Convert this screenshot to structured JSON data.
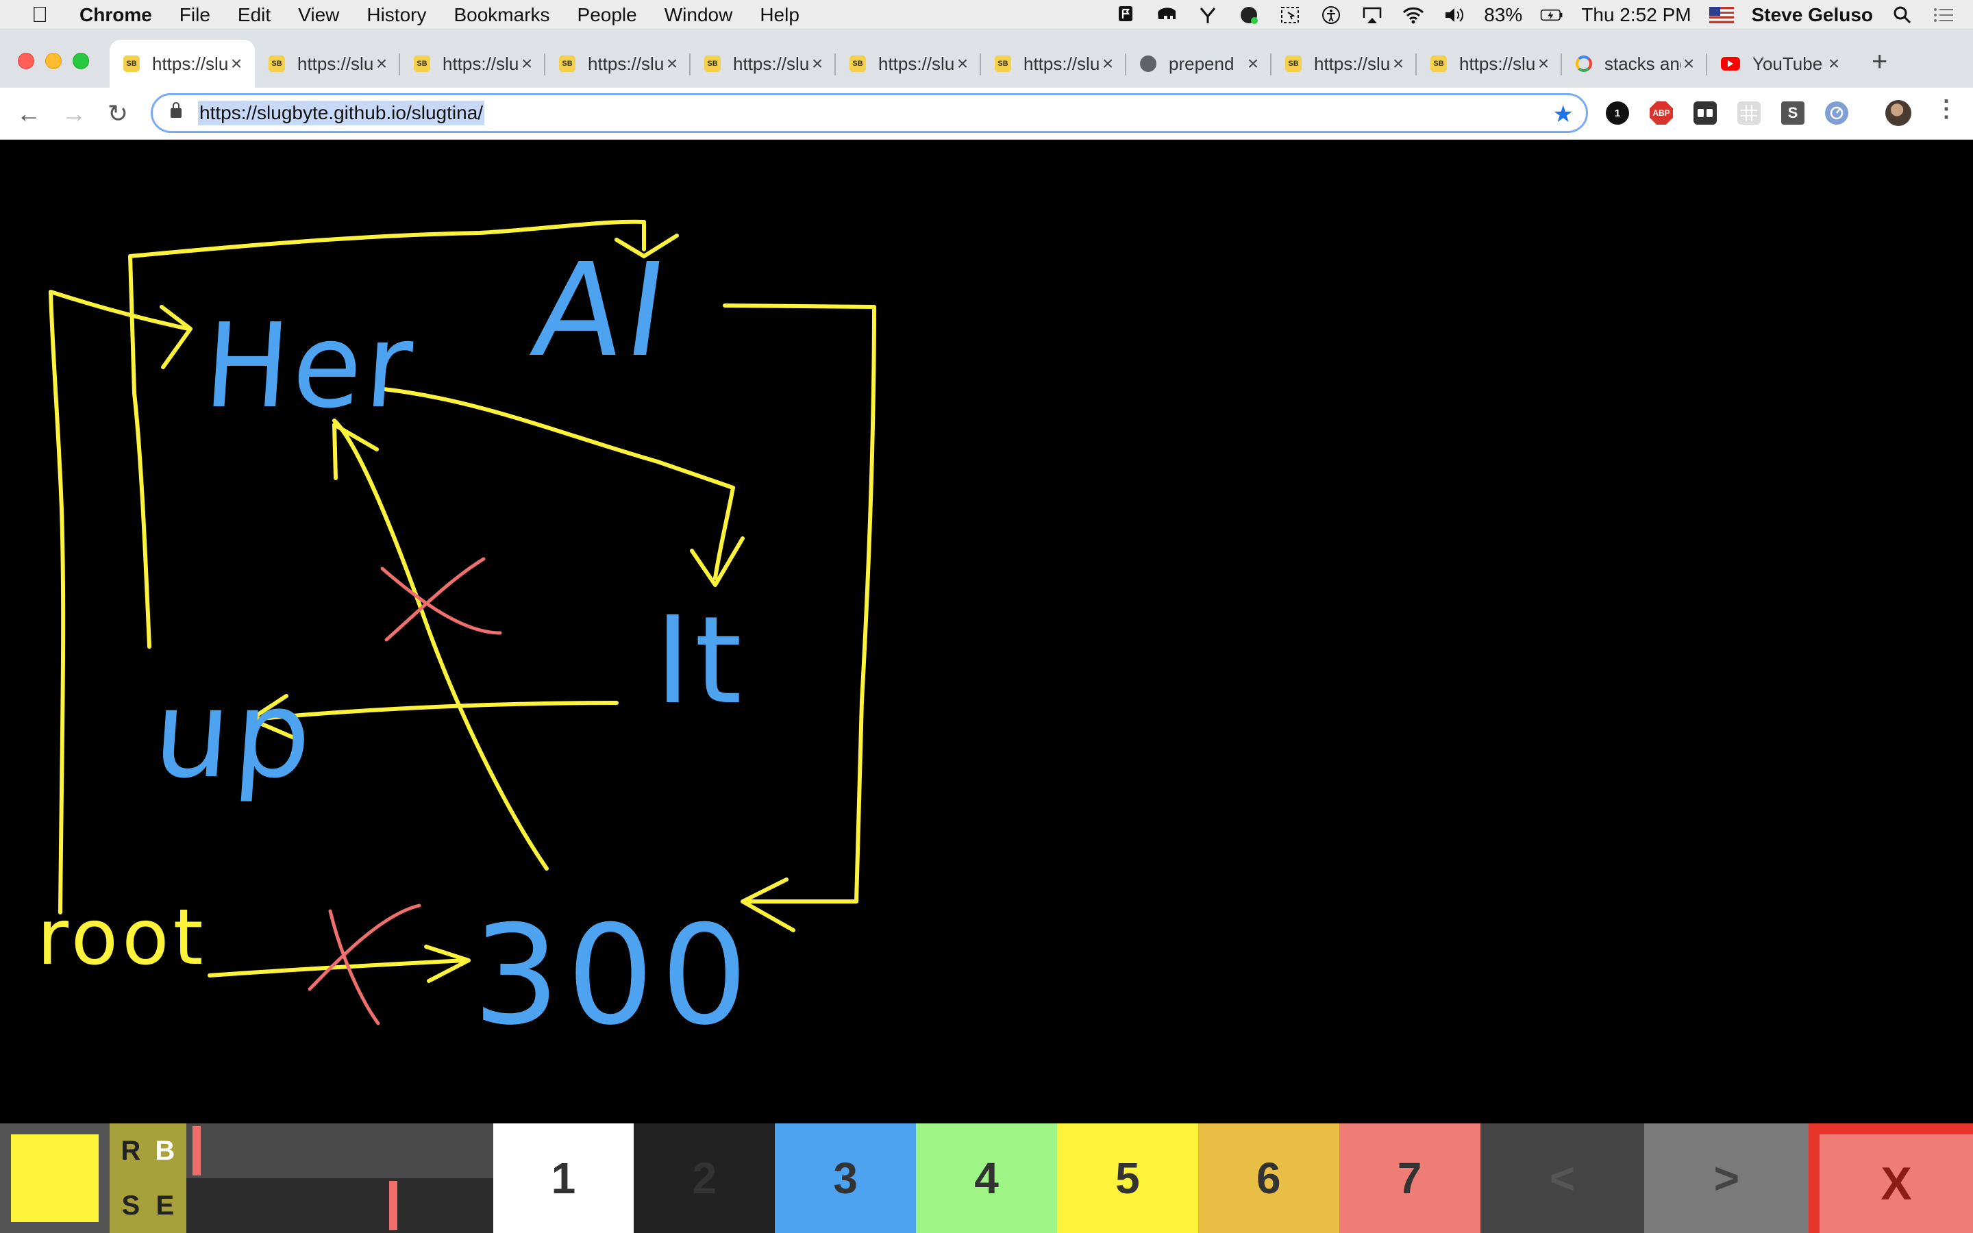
{
  "menubar": {
    "app_name": "Chrome",
    "items": [
      "File",
      "Edit",
      "View",
      "History",
      "Bookmarks",
      "People",
      "Window",
      "Help"
    ],
    "battery": "83%",
    "clock": "Thu 2:52 PM",
    "user": "Steve Geluso"
  },
  "tabs": [
    {
      "title": "https://slugbyte.github.io/slugtina/",
      "favicon": "slugbyte-icon",
      "active": true
    },
    {
      "title": "https://slugbyte.github.io/",
      "favicon": "slugbyte-icon",
      "active": false
    },
    {
      "title": "https://slugbyte.github.io/",
      "favicon": "slugbyte-icon",
      "active": false
    },
    {
      "title": "https://slugbyte.github.io/",
      "favicon": "slugbyte-icon",
      "active": false
    },
    {
      "title": "https://slugbyte.github.io/",
      "favicon": "slugbyte-icon",
      "active": false
    },
    {
      "title": "https://slugbyte.github.io/",
      "favicon": "slugbyte-icon",
      "active": false
    },
    {
      "title": "https://slugbyte.github.io/",
      "favicon": "slugbyte-icon",
      "active": false
    },
    {
      "title": "prepend",
      "favicon": "globe-icon",
      "active": false
    },
    {
      "title": "https://slugbyte.github.io/",
      "favicon": "slugbyte-icon",
      "active": false
    },
    {
      "title": "https://slugbyte.github.io/",
      "favicon": "slugbyte-icon",
      "active": false
    },
    {
      "title": "stacks and queues",
      "favicon": "google-icon",
      "active": false
    },
    {
      "title": "YouTube",
      "favicon": "youtube-icon",
      "active": false
    }
  ],
  "toolbar": {
    "url": "https://slugbyte.github.io/slugtina/",
    "extension_abp_label": "ABP",
    "extension_one_label": "1",
    "extension_s_label": "S"
  },
  "drawing": {
    "labels": {
      "her": "Her",
      "ai": "AI",
      "it": "It",
      "up": "up",
      "root": "root",
      "three_hundred": "300"
    },
    "ink_color": "#fdf33b",
    "text_color": "#4da3ef",
    "cross_color": "#ef6f6c"
  },
  "palette": {
    "current_color": "#fdf33b",
    "modes": [
      "R",
      "B",
      "S",
      "E"
    ],
    "size_slider_value": 0.02,
    "opacity_slider_value": 0.68,
    "colors": [
      {
        "label": "1",
        "color": "#ffffff"
      },
      {
        "label": "2",
        "color": "#222222"
      },
      {
        "label": "3",
        "color": "#4da3ef"
      },
      {
        "label": "4",
        "color": "#9ef586"
      },
      {
        "label": "5",
        "color": "#fdf33b"
      },
      {
        "label": "6",
        "color": "#e8be44"
      },
      {
        "label": "7",
        "color": "#ef7d75"
      }
    ],
    "prev_label": "<",
    "next_label": ">",
    "clear_label": "X"
  }
}
